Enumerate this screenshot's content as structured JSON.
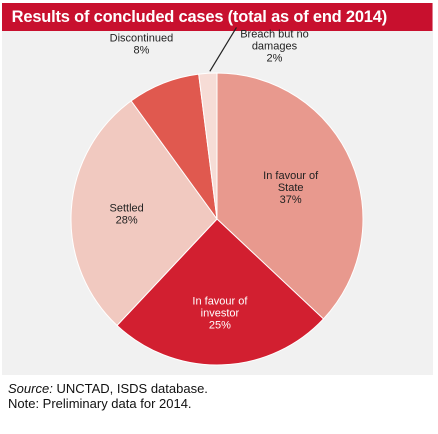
{
  "header": {
    "title": "Results of concluded cases (total as of end 2014)"
  },
  "chart_data": {
    "type": "pie",
    "title": "Results of concluded cases (total as of end 2014)",
    "slices": [
      {
        "name": "In favour of State",
        "value": 37,
        "label_lines": [
          "In favour of",
          "State",
          "37%"
        ],
        "color": "#e8998e"
      },
      {
        "name": "In favour of investor",
        "value": 25,
        "label_lines": [
          "In favour of",
          "investor",
          "25%"
        ],
        "color": "#d21f30"
      },
      {
        "name": "Settled",
        "value": 28,
        "label_lines": [
          "Settled",
          "28%"
        ],
        "color": "#f1c9c0"
      },
      {
        "name": "Discontinued",
        "value": 8,
        "label_lines": [
          "Discontinued",
          "8%"
        ],
        "color": "#e0594f"
      },
      {
        "name": "Breach but no damages",
        "value": 2,
        "label_lines": [
          "Breach but no",
          "damages",
          "2%"
        ],
        "color": "#f6dcd6"
      }
    ]
  },
  "footer": {
    "source_label": "Source:",
    "source_text": "UNCTAD, ISDS database.",
    "note": "Note: Preliminary data for 2014."
  }
}
